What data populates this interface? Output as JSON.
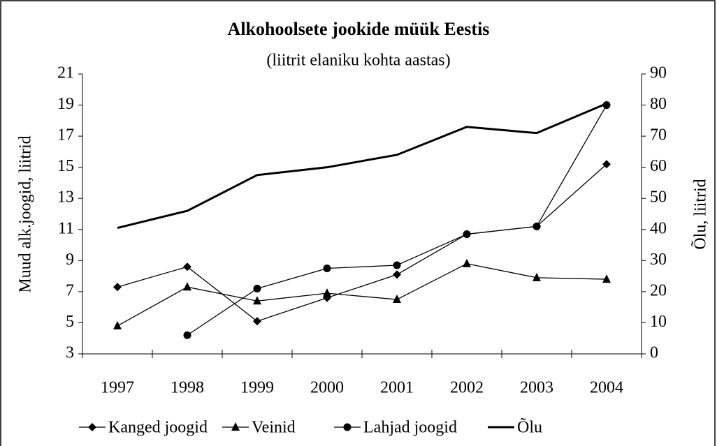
{
  "chart_data": {
    "type": "line",
    "title": "Alkohoolsete jookide müük Eestis",
    "subtitle": "(liitrit elaniku kohta aastas)",
    "y_label": "Muud alk.joogid, liitrid",
    "y2_label": "Õlu, liitrid",
    "categories": [
      "1997",
      "1998",
      "1999",
      "2000",
      "2001",
      "2002",
      "2003",
      "2004"
    ],
    "ylim": [
      3,
      21
    ],
    "yticks": [
      3,
      5,
      7,
      9,
      11,
      13,
      15,
      17,
      19,
      21
    ],
    "y2lim": [
      0,
      90
    ],
    "y2ticks": [
      0,
      10,
      20,
      30,
      40,
      50,
      60,
      70,
      80,
      90
    ],
    "legend": "bottom",
    "series": [
      {
        "name": "Kanged joogid",
        "color": "#000000",
        "marker": "diamond",
        "values": [
          7.3,
          8.6,
          5.1,
          6.6,
          8.1,
          10.7,
          11.2,
          15.2
        ]
      },
      {
        "name": "Veinid",
        "color": "#000000",
        "marker": "triangle",
        "values": [
          4.8,
          7.3,
          6.4,
          6.9,
          6.5,
          8.8,
          7.9,
          7.8
        ]
      },
      {
        "name": "Lahjad joogid",
        "color": "#000000",
        "marker": "circle",
        "values": [
          null,
          4.2,
          7.2,
          8.5,
          8.7,
          10.7,
          11.2,
          19.0
        ]
      },
      {
        "name": "Õlu",
        "color": "#000000",
        "axis": "y2",
        "values": [
          40.5,
          46,
          57.5,
          60,
          64,
          73,
          71,
          80.5
        ]
      }
    ]
  }
}
